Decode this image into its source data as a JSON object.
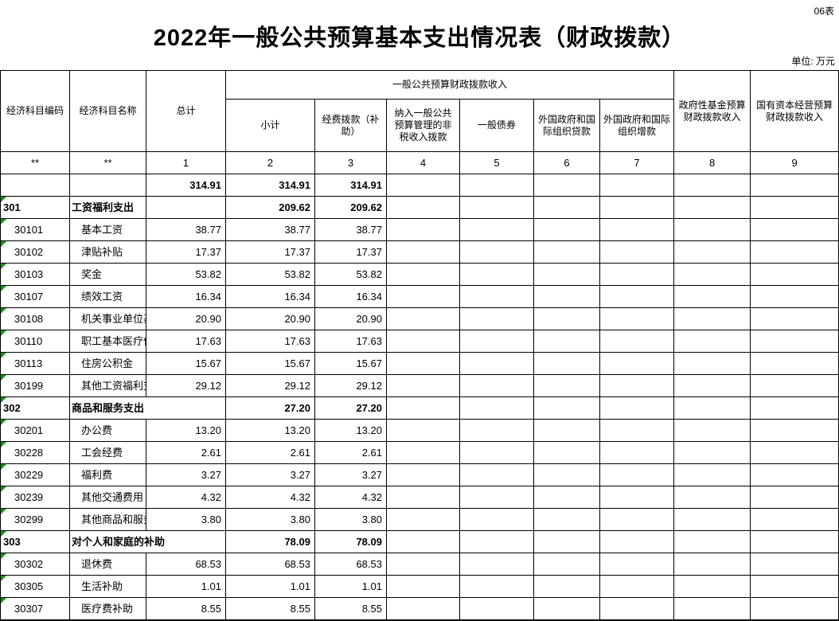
{
  "page": {
    "sheet_label": "06表",
    "title": "2022年一般公共预算基本支出情况表（财政拨款）",
    "unit_label": "单位: 万元"
  },
  "table": {
    "header": {
      "col_code": "经济科目编码",
      "col_name": "经济科目名称",
      "col_total": "总计",
      "group_general": "一般公共预算财政拨款收入",
      "sub": [
        "小计",
        "经费拨款（补助）",
        "纳入一般公共预算管理的非税收入拨款",
        "一般债券",
        "外国政府和国际组织贷款",
        "外国政府和国际组织增款"
      ],
      "col_gov_fund": "政府性基金预算财政拨款收入",
      "col_state_capital": "国有资本经营预算财政拨款收入",
      "index_row": [
        "**",
        "**",
        "1",
        "2",
        "3",
        "4",
        "5",
        "6",
        "7",
        "8",
        "9"
      ]
    },
    "rows": [
      {
        "code": "",
        "name": "",
        "bold": true,
        "marker": false,
        "indent": false,
        "overflow": false,
        "values": [
          "314.91",
          "314.91",
          "314.91",
          "",
          "",
          "",
          "",
          "",
          ""
        ]
      },
      {
        "code": "301",
        "name": "工资福利支出",
        "bold": true,
        "marker": true,
        "indent": false,
        "overflow": false,
        "values": [
          "",
          "209.62",
          "209.62",
          "",
          "",
          "",
          "",
          "",
          ""
        ]
      },
      {
        "code": "30101",
        "name": "基本工资",
        "bold": false,
        "marker": true,
        "indent": true,
        "overflow": false,
        "values": [
          "38.77",
          "38.77",
          "38.77",
          "",
          "",
          "",
          "",
          "",
          ""
        ]
      },
      {
        "code": "30102",
        "name": "津贴补贴",
        "bold": false,
        "marker": true,
        "indent": true,
        "overflow": false,
        "values": [
          "17.37",
          "17.37",
          "17.37",
          "",
          "",
          "",
          "",
          "",
          ""
        ]
      },
      {
        "code": "30103",
        "name": "奖金",
        "bold": false,
        "marker": true,
        "indent": true,
        "overflow": false,
        "values": [
          "53.82",
          "53.82",
          "53.82",
          "",
          "",
          "",
          "",
          "",
          ""
        ]
      },
      {
        "code": "30107",
        "name": "绩效工资",
        "bold": false,
        "marker": true,
        "indent": true,
        "overflow": false,
        "values": [
          "16.34",
          "16.34",
          "16.34",
          "",
          "",
          "",
          "",
          "",
          ""
        ]
      },
      {
        "code": "30108",
        "name": "机关事业单位基本养老保险缴费",
        "bold": false,
        "marker": true,
        "indent": true,
        "overflow": false,
        "values": [
          "20.90",
          "20.90",
          "20.90",
          "",
          "",
          "",
          "",
          "",
          ""
        ]
      },
      {
        "code": "30110",
        "name": "职工基本医疗保险缴费",
        "bold": false,
        "marker": true,
        "indent": true,
        "overflow": false,
        "values": [
          "17.63",
          "17.63",
          "17.63",
          "",
          "",
          "",
          "",
          "",
          ""
        ]
      },
      {
        "code": "30113",
        "name": "住房公积金",
        "bold": false,
        "marker": true,
        "indent": true,
        "overflow": false,
        "values": [
          "15.67",
          "15.67",
          "15.67",
          "",
          "",
          "",
          "",
          "",
          ""
        ]
      },
      {
        "code": "30199",
        "name": "其他工资福利支出",
        "bold": false,
        "marker": true,
        "indent": true,
        "overflow": false,
        "values": [
          "29.12",
          "29.12",
          "29.12",
          "",
          "",
          "",
          "",
          "",
          ""
        ]
      },
      {
        "code": "302",
        "name": "商品和服务支出",
        "bold": true,
        "marker": true,
        "indent": false,
        "overflow": true,
        "values": [
          "",
          "27.20",
          "27.20",
          "",
          "",
          "",
          "",
          "",
          ""
        ]
      },
      {
        "code": "30201",
        "name": "办公费",
        "bold": false,
        "marker": true,
        "indent": true,
        "overflow": false,
        "values": [
          "13.20",
          "13.20",
          "13.20",
          "",
          "",
          "",
          "",
          "",
          ""
        ]
      },
      {
        "code": "30228",
        "name": "工会经费",
        "bold": false,
        "marker": true,
        "indent": true,
        "overflow": false,
        "values": [
          "2.61",
          "2.61",
          "2.61",
          "",
          "",
          "",
          "",
          "",
          ""
        ]
      },
      {
        "code": "30229",
        "name": "福利费",
        "bold": false,
        "marker": true,
        "indent": true,
        "overflow": false,
        "values": [
          "3.27",
          "3.27",
          "3.27",
          "",
          "",
          "",
          "",
          "",
          ""
        ]
      },
      {
        "code": "30239",
        "name": "其他交通费用",
        "bold": false,
        "marker": true,
        "indent": true,
        "overflow": false,
        "values": [
          "4.32",
          "4.32",
          "4.32",
          "",
          "",
          "",
          "",
          "",
          ""
        ]
      },
      {
        "code": "30299",
        "name": "其他商品和服务支出",
        "bold": false,
        "marker": true,
        "indent": true,
        "overflow": false,
        "values": [
          "3.80",
          "3.80",
          "3.80",
          "",
          "",
          "",
          "",
          "",
          ""
        ]
      },
      {
        "code": "303",
        "name": "对个人和家庭的补助",
        "bold": true,
        "marker": true,
        "indent": false,
        "overflow": true,
        "values": [
          "",
          "78.09",
          "78.09",
          "",
          "",
          "",
          "",
          "",
          ""
        ]
      },
      {
        "code": "30302",
        "name": "退休费",
        "bold": false,
        "marker": true,
        "indent": true,
        "overflow": false,
        "values": [
          "68.53",
          "68.53",
          "68.53",
          "",
          "",
          "",
          "",
          "",
          ""
        ]
      },
      {
        "code": "30305",
        "name": "生活补助",
        "bold": false,
        "marker": true,
        "indent": true,
        "overflow": false,
        "values": [
          "1.01",
          "1.01",
          "1.01",
          "",
          "",
          "",
          "",
          "",
          ""
        ]
      },
      {
        "code": "30307",
        "name": "医疗费补助",
        "bold": false,
        "marker": true,
        "indent": true,
        "overflow": false,
        "values": [
          "8.55",
          "8.55",
          "8.55",
          "",
          "",
          "",
          "",
          "",
          ""
        ]
      }
    ]
  }
}
